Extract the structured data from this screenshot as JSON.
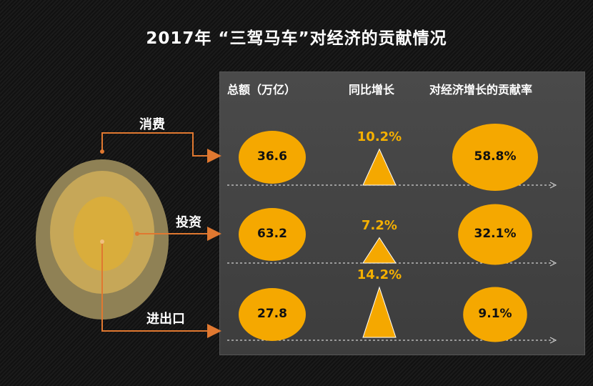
{
  "title": "2017年 “三驾马车”对经济的贡献情况",
  "headers": {
    "total": "总额（万亿）",
    "growth": "同比增长",
    "contribution": "对经济增长的贡献率"
  },
  "colors": {
    "accent": "#f5a800",
    "arrow": "#e07830",
    "panel": "#474747"
  },
  "chart_data": {
    "type": "table",
    "categories": [
      "消费",
      "投资",
      "进出口"
    ],
    "series": [
      {
        "name": "总额（万亿）",
        "values": [
          36.6,
          63.2,
          27.8
        ],
        "labels": [
          "36.6",
          "63.2",
          "27.8"
        ]
      },
      {
        "name": "同比增长",
        "values": [
          10.2,
          7.2,
          14.2
        ],
        "labels": [
          "10.2%",
          "7.2%",
          "14.2%"
        ]
      },
      {
        "name": "对经济增长的贡献率",
        "values": [
          58.8,
          32.1,
          9.1
        ],
        "labels": [
          "58.8%",
          "32.1%",
          "9.1%"
        ]
      }
    ]
  }
}
